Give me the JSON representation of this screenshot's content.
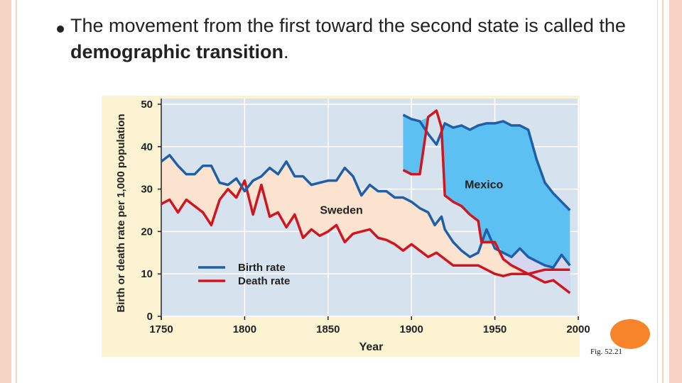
{
  "slide": {
    "text_before": "The movement from the first toward the second state is called the ",
    "text_bold": "demographic transition",
    "text_after": ".",
    "figure_label": "Fig. 52.21"
  },
  "colors": {
    "birth": "#1f5fa8",
    "death": "#d0151f",
    "mexico_fill": "#5cc0f2",
    "sweden_fill": "#fbe3cf",
    "overlap_fill": "#d6d6ee",
    "plot_bg": "#d6e3ef",
    "outer_bg": "#fcf3d3",
    "border": "#f6d2c2",
    "accent_circle": "#f7832a"
  },
  "chart_data": {
    "type": "area",
    "xlabel": "Year",
    "ylabel": "Birth or death rate per 1,000 population",
    "xlim": [
      1750,
      2000
    ],
    "ylim": [
      0,
      50
    ],
    "xticks": [
      1750,
      1800,
      1850,
      1900,
      1950,
      2000
    ],
    "yticks": [
      0,
      10,
      20,
      30,
      40,
      50
    ],
    "grid": true,
    "legend": [
      {
        "label": "Birth rate",
        "key": "birth"
      },
      {
        "label": "Death rate",
        "key": "death"
      }
    ],
    "annotations": [
      {
        "text": "Mexico",
        "x": 1983,
        "y": 31
      },
      {
        "text": "Sweden",
        "x": 1858,
        "y": 25
      }
    ],
    "series": [
      {
        "name": "Birth rate",
        "country": "Sweden",
        "color_key": "birth",
        "points": [
          [
            1750,
            36.5
          ],
          [
            1755,
            38
          ],
          [
            1760,
            35.5
          ],
          [
            1765,
            33.5
          ],
          [
            1770,
            33.5
          ],
          [
            1775,
            35.5
          ],
          [
            1780,
            35.5
          ],
          [
            1785,
            31.5
          ],
          [
            1790,
            31
          ],
          [
            1795,
            32.5
          ],
          [
            1800,
            29.5
          ],
          [
            1805,
            32
          ],
          [
            1810,
            33
          ],
          [
            1815,
            35
          ],
          [
            1820,
            33.5
          ],
          [
            1825,
            36.5
          ],
          [
            1830,
            33
          ],
          [
            1835,
            33
          ],
          [
            1840,
            31
          ],
          [
            1845,
            31.5
          ],
          [
            1850,
            32
          ],
          [
            1855,
            32
          ],
          [
            1860,
            35
          ],
          [
            1865,
            33
          ],
          [
            1870,
            28.5
          ],
          [
            1875,
            31
          ],
          [
            1880,
            29.5
          ],
          [
            1885,
            29.5
          ],
          [
            1890,
            28
          ],
          [
            1895,
            28
          ],
          [
            1900,
            27
          ],
          [
            1905,
            25.5
          ],
          [
            1910,
            24.5
          ],
          [
            1914,
            21.5
          ],
          [
            1918,
            23.5
          ],
          [
            1920,
            20.5
          ],
          [
            1925,
            17.5
          ],
          [
            1930,
            15.5
          ],
          [
            1935,
            14
          ],
          [
            1940,
            15
          ],
          [
            1945,
            20.5
          ],
          [
            1950,
            16
          ],
          [
            1955,
            15
          ],
          [
            1960,
            14
          ],
          [
            1965,
            16
          ],
          [
            1970,
            14
          ],
          [
            1975,
            13
          ],
          [
            1980,
            12
          ],
          [
            1985,
            11.5
          ],
          [
            1990,
            14.5
          ],
          [
            1995,
            12
          ]
        ]
      },
      {
        "name": "Death rate",
        "country": "Sweden",
        "color_key": "death",
        "points": [
          [
            1750,
            26.5
          ],
          [
            1755,
            27.5
          ],
          [
            1760,
            24.5
          ],
          [
            1765,
            27.5
          ],
          [
            1770,
            26
          ],
          [
            1775,
            24.5
          ],
          [
            1780,
            21.5
          ],
          [
            1785,
            27.5
          ],
          [
            1790,
            30
          ],
          [
            1795,
            28
          ],
          [
            1800,
            32
          ],
          [
            1805,
            24
          ],
          [
            1810,
            31
          ],
          [
            1815,
            23.5
          ],
          [
            1820,
            24.5
          ],
          [
            1825,
            21
          ],
          [
            1830,
            24
          ],
          [
            1835,
            18.5
          ],
          [
            1840,
            20.5
          ],
          [
            1845,
            19
          ],
          [
            1850,
            20
          ],
          [
            1855,
            21.5
          ],
          [
            1860,
            17.5
          ],
          [
            1865,
            19.5
          ],
          [
            1870,
            20
          ],
          [
            1875,
            20.5
          ],
          [
            1880,
            18.5
          ],
          [
            1885,
            18
          ],
          [
            1890,
            17
          ],
          [
            1895,
            15.5
          ],
          [
            1900,
            17
          ],
          [
            1905,
            15.5
          ],
          [
            1910,
            14
          ],
          [
            1915,
            15
          ],
          [
            1920,
            13.5
          ],
          [
            1925,
            12
          ],
          [
            1930,
            12
          ],
          [
            1935,
            12
          ],
          [
            1940,
            12
          ],
          [
            1945,
            11
          ],
          [
            1950,
            10
          ],
          [
            1955,
            9.5
          ],
          [
            1960,
            10
          ],
          [
            1965,
            10
          ],
          [
            1970,
            10
          ],
          [
            1975,
            10.5
          ],
          [
            1980,
            11
          ],
          [
            1985,
            11
          ],
          [
            1990,
            11
          ],
          [
            1995,
            11
          ]
        ]
      },
      {
        "name": "Birth rate",
        "country": "Mexico",
        "color_key": "birth",
        "points": [
          [
            1895,
            47.5
          ],
          [
            1900,
            46.5
          ],
          [
            1905,
            46
          ],
          [
            1910,
            43
          ],
          [
            1915,
            40.5
          ],
          [
            1920,
            45.5
          ],
          [
            1925,
            44.5
          ],
          [
            1930,
            45
          ],
          [
            1935,
            44
          ],
          [
            1940,
            45
          ],
          [
            1945,
            45.5
          ],
          [
            1950,
            45.5
          ],
          [
            1955,
            46
          ],
          [
            1960,
            45
          ],
          [
            1965,
            45
          ],
          [
            1970,
            44
          ],
          [
            1975,
            37
          ],
          [
            1980,
            31.5
          ],
          [
            1985,
            29
          ],
          [
            1990,
            27
          ],
          [
            1995,
            25
          ]
        ]
      },
      {
        "name": "Death rate",
        "country": "Mexico",
        "color_key": "death",
        "points": [
          [
            1895,
            34.5
          ],
          [
            1900,
            33.5
          ],
          [
            1905,
            33.5
          ],
          [
            1910,
            47
          ],
          [
            1915,
            48.5
          ],
          [
            1918,
            44.5
          ],
          [
            1920,
            28.5
          ],
          [
            1925,
            27
          ],
          [
            1930,
            26
          ],
          [
            1935,
            24
          ],
          [
            1940,
            22.5
          ],
          [
            1942,
            17.5
          ],
          [
            1945,
            17.5
          ],
          [
            1950,
            17.5
          ],
          [
            1955,
            13.5
          ],
          [
            1960,
            12
          ],
          [
            1965,
            11
          ],
          [
            1970,
            10
          ],
          [
            1975,
            9
          ],
          [
            1980,
            8
          ],
          [
            1985,
            8.5
          ],
          [
            1990,
            7
          ],
          [
            1995,
            5.5
          ]
        ]
      }
    ]
  }
}
